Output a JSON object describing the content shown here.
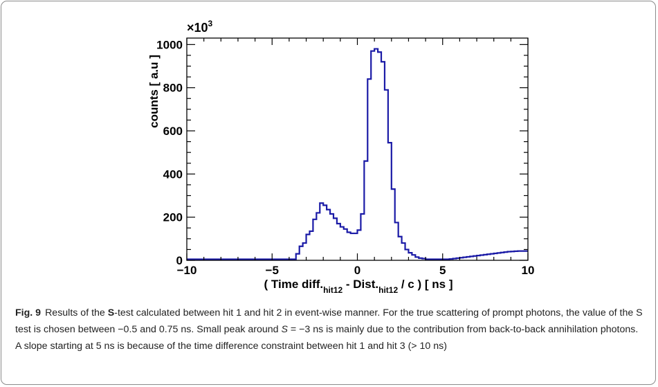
{
  "figure": {
    "label": "Fig. 9",
    "caption": {
      "p1": "Results of the ",
      "bold_S": "S",
      "p2": "-test calculated between hit 1 and hit 2 in event-wise manner. For the true scattering of prompt photons, the value of the S test is chosen between −0.5 and 0.75 ns. Small peak around ",
      "italic_S": "S",
      "p3": " = −3 ns is mainly due to the contribution from back-to-back annihilation photons. A slope starting at 5 ns is because of the time difference constraint between hit 1 and hit 3 (> 10 ns)"
    }
  },
  "chart_data": {
    "type": "histogram",
    "title": "",
    "xlabel_parts": {
      "a": "( Time diff.",
      "sub1": "hit12",
      "b": " - Dist.",
      "sub2": "hit12",
      "c": " / c ) [ ns ]"
    },
    "ylabel": "counts [ a.u ]",
    "y_multiplier_base": "×10",
    "y_multiplier_exp": "3",
    "xlim": [
      -10,
      10
    ],
    "ylim": [
      0,
      1030
    ],
    "xticks": [
      -10,
      -5,
      0,
      5,
      10
    ],
    "yticks": [
      0,
      200,
      400,
      600,
      800,
      1000
    ],
    "line_color": "#1a1aa6",
    "bin_edges_start": -10,
    "bin_width": 0.2,
    "counts": [
      5,
      5,
      5,
      5,
      5,
      5,
      5,
      5,
      5,
      5,
      5,
      5,
      5,
      5,
      5,
      5,
      5,
      5,
      5,
      5,
      5,
      5,
      5,
      5,
      5,
      5,
      5,
      5,
      5,
      5,
      5,
      5,
      30,
      65,
      80,
      120,
      135,
      190,
      220,
      265,
      255,
      235,
      215,
      195,
      170,
      155,
      145,
      130,
      125,
      125,
      140,
      215,
      460,
      840,
      970,
      980,
      965,
      920,
      790,
      545,
      330,
      175,
      110,
      80,
      50,
      35,
      25,
      15,
      10,
      8,
      5,
      5,
      5,
      5,
      5,
      5,
      5,
      6,
      8,
      10,
      12,
      14,
      16,
      18,
      20,
      22,
      24,
      26,
      28,
      30,
      32,
      34,
      36,
      38,
      40,
      41,
      42,
      43,
      43,
      43
    ]
  }
}
